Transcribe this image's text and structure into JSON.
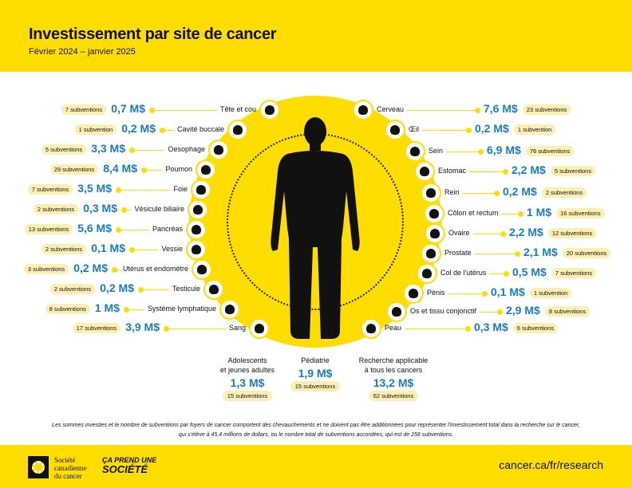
{
  "header": {
    "title": "Investissement par site de cancer",
    "subtitle": "Février 2024 – janvier 2025"
  },
  "left": [
    {
      "label": "Tête et cou",
      "amount": "0,7 M$",
      "grants": "7 subventions",
      "icon": "head-icon"
    },
    {
      "label": "Cavité buccale",
      "amount": "0,2 M$",
      "grants": "1 subvention",
      "icon": "mouth-icon"
    },
    {
      "label": "Oesophage",
      "amount": "3,3 M$",
      "grants": "5 subventions",
      "icon": "esophagus-icon"
    },
    {
      "label": "Poumon",
      "amount": "8,4 M$",
      "grants": "29 subventions",
      "icon": "lungs-icon"
    },
    {
      "label": "Foie",
      "amount": "3,5 M$",
      "grants": "7 subventions",
      "icon": "liver-icon"
    },
    {
      "label": "Vésicule biliaire",
      "amount": "0,3 M$",
      "grants": "2 subventions",
      "icon": "gallbladder-icon"
    },
    {
      "label": "Pancréas",
      "amount": "5,6 M$",
      "grants": "13 subventions",
      "icon": "pancreas-icon"
    },
    {
      "label": "Vessie",
      "amount": "0,1 M$",
      "grants": "2 subventions",
      "icon": "bladder-icon"
    },
    {
      "label": "Utérus et endomètre",
      "amount": "0,2 M$",
      "grants": "3 subventions",
      "icon": "uterus-icon"
    },
    {
      "label": "Testicule",
      "amount": "0,2 M$",
      "grants": "2 subventions",
      "icon": "testicle-icon"
    },
    {
      "label": "Système lymphatique",
      "amount": "1 M$",
      "grants": "8 subventions",
      "icon": "lymphatic-icon"
    },
    {
      "label": "Sang",
      "amount": "3,9 M$",
      "grants": "17 subventions",
      "icon": "blood-icon"
    }
  ],
  "right": [
    {
      "label": "Cerveau",
      "amount": "7,6 M$",
      "grants": "23 subventions",
      "icon": "brain-icon"
    },
    {
      "label": "Œil",
      "amount": "0,2 M$",
      "grants": "1 subvention",
      "icon": "eye-icon"
    },
    {
      "label": "Sein",
      "amount": "6,9 M$",
      "grants": "76 subventions",
      "icon": "breast-icon"
    },
    {
      "label": "Estomac",
      "amount": "2,2 M$",
      "grants": "5 subventions",
      "icon": "stomach-icon"
    },
    {
      "label": "Rein",
      "amount": "0,2 M$",
      "grants": "2 subventions",
      "icon": "kidney-icon"
    },
    {
      "label": "Côlon et rectum",
      "amount": "1 M$",
      "grants": "16 subventions",
      "icon": "colon-icon"
    },
    {
      "label": "Ovaire",
      "amount": "2,2 M$",
      "grants": "12 subventions",
      "icon": "ovary-icon"
    },
    {
      "label": "Prostate",
      "amount": "2,1 M$",
      "grants": "20 subventions",
      "icon": "prostate-icon"
    },
    {
      "label": "Col de l'utérus",
      "amount": "0,5 M$",
      "grants": "7 subventions",
      "icon": "cervix-icon"
    },
    {
      "label": "Pénis",
      "amount": "0,1 M$",
      "grants": "1 subvention",
      "icon": "penis-icon"
    },
    {
      "label": "Os et tissu conjonctif",
      "amount": "2,9 M$",
      "grants": "8 subventions",
      "icon": "bone-icon"
    },
    {
      "label": "Peau",
      "amount": "0,3 M$",
      "grants": "6 subventions",
      "icon": "hand-icon"
    }
  ],
  "stats": [
    {
      "line1": "Adolescents",
      "line2": "et jeunes adultes",
      "amount": "1,3 M$",
      "grants": "15 subventions"
    },
    {
      "line1": "",
      "line2": "Pédiatrie",
      "amount": "1,9 M$",
      "grants": "15 subventions"
    },
    {
      "line1": "Recherche applicable",
      "line2": "à tous les cancers",
      "amount": "13,2 M$",
      "grants": "62 subventions"
    }
  ],
  "note": {
    "line1": "Les sommes investies et le nombre de subventions par foyers de cancer comportent des chevauchements et ne doivent pas être additionnées pour représenter l'investissement total dans la recherche sur le cancer,",
    "line2": "qui s'élève à 45,4 millions de dollars, ou le nombre total de subventions accordées, qui est de 258 subventions."
  },
  "footer": {
    "org_line1": "Société",
    "org_line2": "canadienne",
    "org_line3": "du cancer",
    "slogan_line1": "ÇA PREND UNE",
    "slogan_line2": "SOCIÉTÉ",
    "url": "cancer.ca/fr/research"
  },
  "colors": {
    "yellow": "#FFDD00",
    "blue": "#1a7bc1",
    "badge": "#fcefb4"
  }
}
